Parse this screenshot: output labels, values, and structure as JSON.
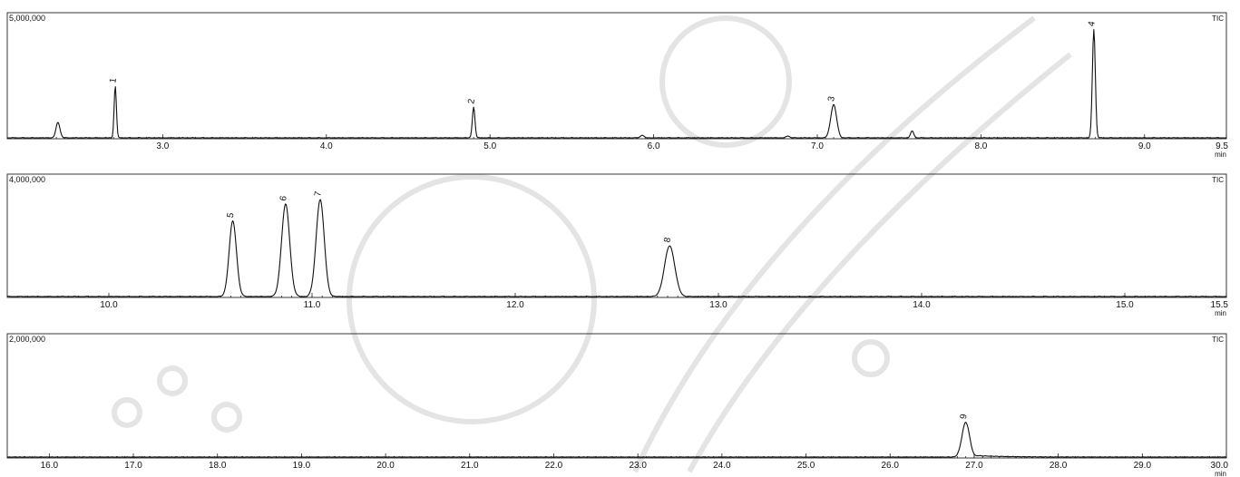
{
  "chart_data": [
    {
      "type": "line",
      "title": "",
      "trace_label": "TIC",
      "xlabel": "min",
      "ylabel": "",
      "y_top_label": "5,000,000",
      "ylim": [
        0,
        5000000
      ],
      "xlim": [
        2.05,
        9.5
      ],
      "x_tick_labels": [
        "3.0",
        "4.0",
        "5.0",
        "6.0",
        "7.0",
        "8.0",
        "9.0",
        "9.5"
      ],
      "x_tick_values": [
        3.0,
        4.0,
        5.0,
        6.0,
        7.0,
        8.0,
        9.0,
        9.5
      ],
      "peaks": [
        {
          "label": "",
          "rt": 2.36,
          "height": 620000,
          "width": 0.012
        },
        {
          "label": "1",
          "rt": 2.71,
          "height": 2050000,
          "width": 0.007
        },
        {
          "label": "2",
          "rt": 4.9,
          "height": 1220000,
          "width": 0.008
        },
        {
          "label": "",
          "rt": 5.93,
          "height": 110000,
          "width": 0.01
        },
        {
          "label": "",
          "rt": 6.82,
          "height": 80000,
          "width": 0.01
        },
        {
          "label": "3",
          "rt": 7.1,
          "height": 1320000,
          "width": 0.018
        },
        {
          "label": "",
          "rt": 7.58,
          "height": 270000,
          "width": 0.01
        },
        {
          "label": "4",
          "rt": 8.69,
          "height": 4300000,
          "width": 0.009
        }
      ]
    },
    {
      "type": "line",
      "title": "",
      "trace_label": "TIC",
      "xlabel": "min",
      "ylabel": "",
      "y_top_label": "4,000,000",
      "ylim": [
        0,
        4000000
      ],
      "xlim": [
        9.5,
        15.5
      ],
      "x_tick_labels": [
        "10.0",
        "11.0",
        "12.0",
        "13.0",
        "14.0",
        "15.0",
        "15.5"
      ],
      "x_tick_values": [
        10.0,
        11.0,
        12.0,
        13.0,
        14.0,
        15.0,
        15.5
      ],
      "peaks": [
        {
          "label": "5",
          "rt": 10.61,
          "height": 2450000,
          "width": 0.018
        },
        {
          "label": "6",
          "rt": 10.87,
          "height": 3000000,
          "width": 0.02
        },
        {
          "label": "7",
          "rt": 11.04,
          "height": 3150000,
          "width": 0.02
        },
        {
          "label": "8",
          "rt": 12.76,
          "height": 1650000,
          "width": 0.025
        }
      ]
    },
    {
      "type": "line",
      "title": "",
      "trace_label": "TIC",
      "xlabel": "min",
      "ylabel": "",
      "y_top_label": "2,000,000",
      "ylim": [
        0,
        2000000
      ],
      "xlim": [
        15.5,
        30.0
      ],
      "x_tick_labels": [
        "16.0",
        "17.0",
        "18.0",
        "19.0",
        "20.0",
        "21.0",
        "22.0",
        "23.0",
        "24.0",
        "25.0",
        "26.0",
        "27.0",
        "28.0",
        "29.0",
        "30.0"
      ],
      "x_tick_values": [
        16.0,
        17.0,
        18.0,
        19.0,
        20.0,
        21.0,
        22.0,
        23.0,
        24.0,
        25.0,
        26.0,
        27.0,
        28.0,
        29.0,
        30.0
      ],
      "peaks": [
        {
          "label": "9",
          "rt": 26.9,
          "height": 560000,
          "width": 0.045,
          "tail": 0.35
        }
      ]
    }
  ]
}
